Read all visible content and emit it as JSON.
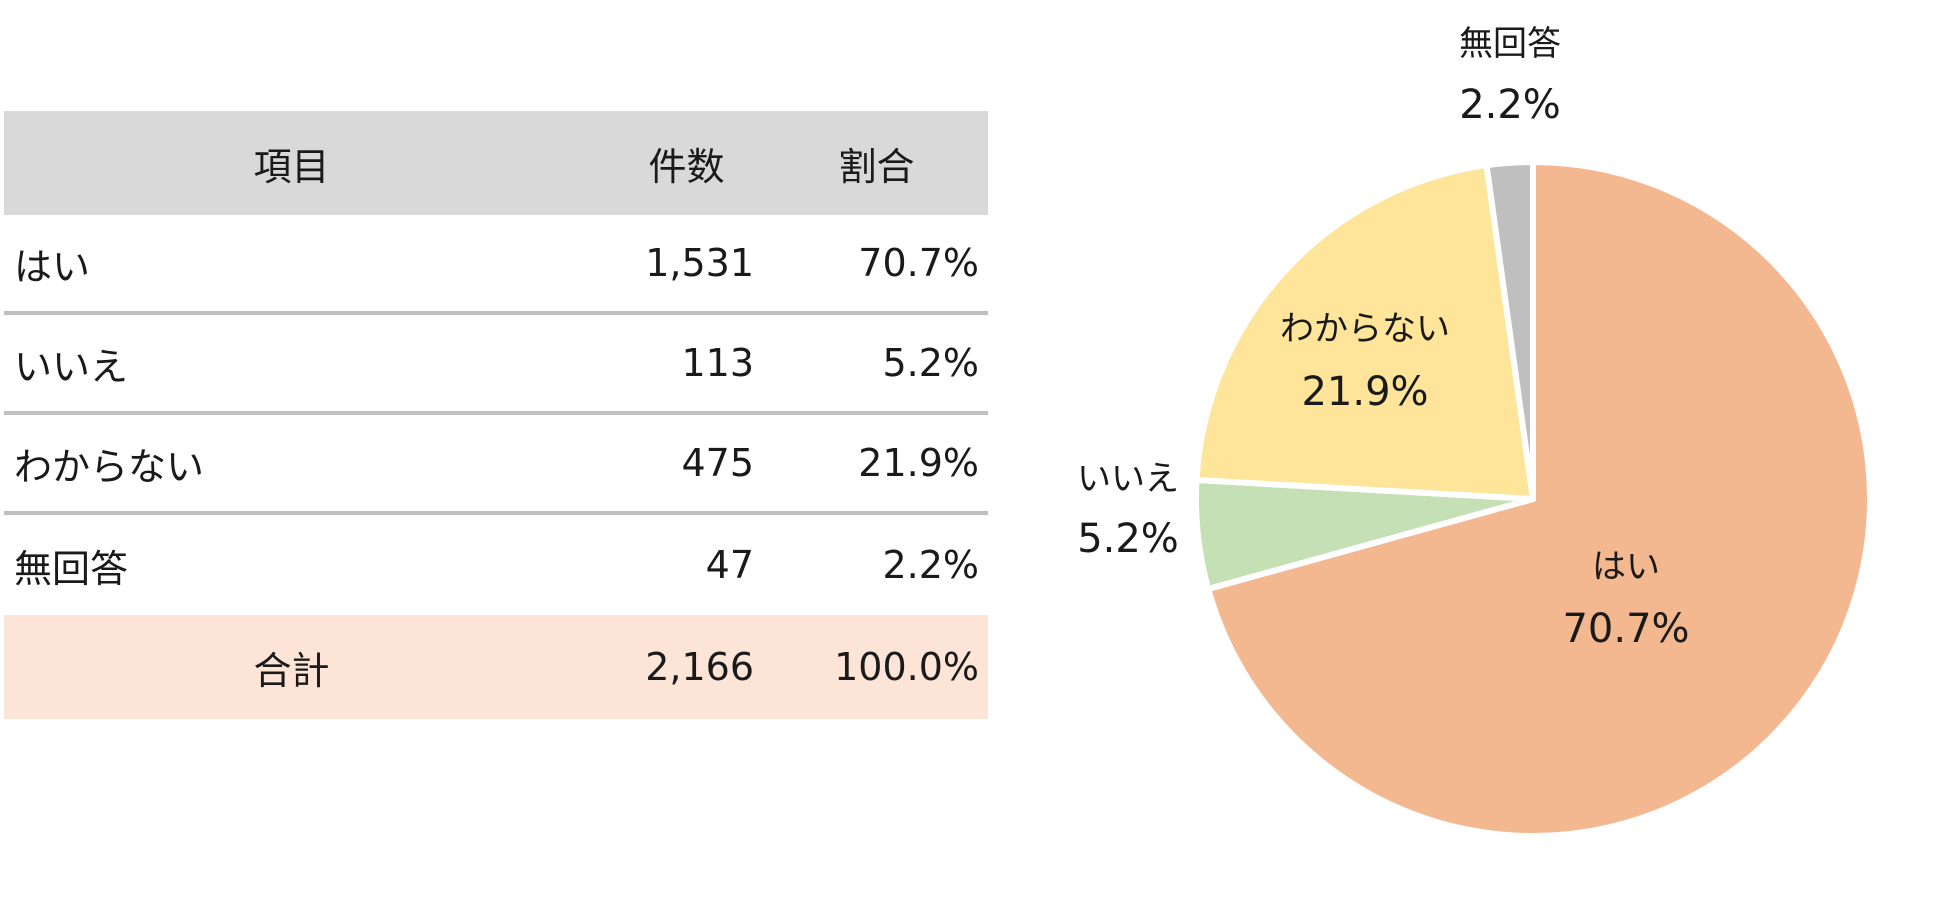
{
  "table": {
    "headers": {
      "item": "項目",
      "count": "件数",
      "pct": "割合"
    },
    "rows": [
      {
        "item": "はい",
        "count": "1,531",
        "pct": "70.7%"
      },
      {
        "item": "いいえ",
        "count": "113",
        "pct": "5.2%"
      },
      {
        "item": "わからない",
        "count": "475",
        "pct": "21.9%"
      },
      {
        "item": "無回答",
        "count": "47",
        "pct": "2.2%"
      }
    ],
    "total": {
      "item": "合計",
      "count": "2,166",
      "pct": "100.0%"
    }
  },
  "chart_data": {
    "type": "pie",
    "categories": [
      "はい",
      "いいえ",
      "わからない",
      "無回答"
    ],
    "values": [
      70.7,
      5.2,
      21.9,
      2.2
    ],
    "counts": [
      1531,
      113,
      475,
      47
    ],
    "labels": [
      "70.7%",
      "5.2%",
      "21.9%",
      "2.2%"
    ],
    "colors": [
      "#f4b891",
      "#c5e0b4",
      "#fee599",
      "#bfbfbf"
    ],
    "start": "12 o'clock",
    "direction": "clockwise"
  }
}
